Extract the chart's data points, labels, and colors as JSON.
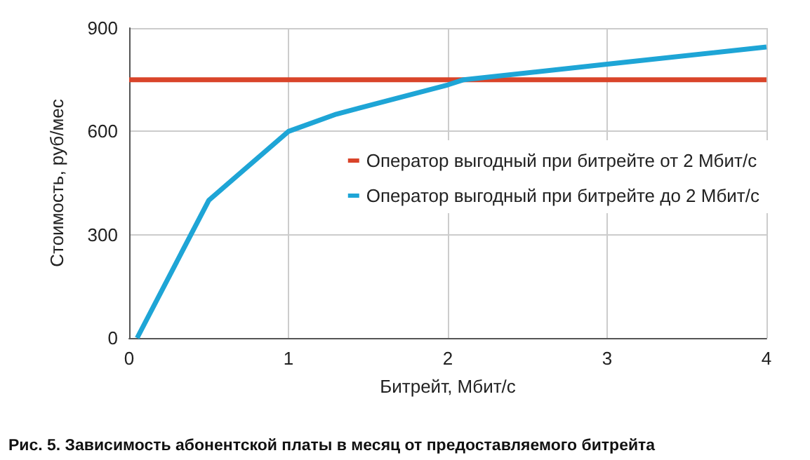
{
  "chart_data": {
    "type": "line",
    "xlabel": "Битрейт, Мбит/с",
    "ylabel": "Стоимость, руб/мес",
    "annotations": [
      "Рис. 5. Зависимость абонентской платы в месяц от предоставляемого битрейта"
    ],
    "series": [
      {
        "name": "Оператор выгодный при битрейте от 2 Мбит/с",
        "color": "#d9442a",
        "x": [
          0,
          4
        ],
        "values": [
          750,
          750
        ]
      },
      {
        "name": "Оператор выгодный при битрейте до 2 Мбит/с",
        "color": "#1ea5d6",
        "x": [
          0.05,
          0.5,
          1,
          1.3,
          2,
          2.1,
          3,
          4
        ],
        "values": [
          0,
          400,
          600,
          650,
          735,
          750,
          795,
          845
        ]
      }
    ],
    "xlim": [
      0,
      4
    ],
    "xticks": [
      0,
      1,
      2,
      3,
      4
    ],
    "ylim": [
      0,
      900
    ],
    "yticks": [
      0,
      300,
      600,
      900
    ],
    "grid": true,
    "legend": "right",
    "marker": "none",
    "line_style": "solid"
  }
}
